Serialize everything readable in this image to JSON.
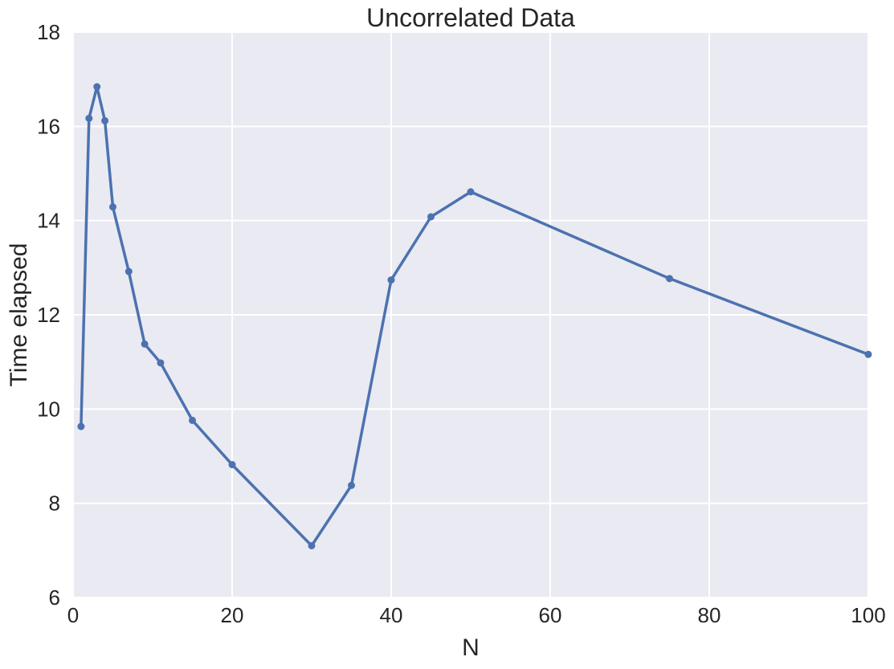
{
  "chart_data": {
    "type": "line",
    "title": "Uncorrelated Data",
    "xlabel": "N",
    "ylabel": "Time elapsed",
    "xlim": [
      0,
      100
    ],
    "ylim": [
      6,
      18
    ],
    "xticks": [
      0,
      20,
      40,
      60,
      80,
      100
    ],
    "yticks": [
      6,
      8,
      10,
      12,
      14,
      16,
      18
    ],
    "grid": true,
    "legend": "none",
    "colors": {
      "background": "#eaeaf2",
      "grid": "#ffffff",
      "series": "#4c72b0"
    },
    "series": [
      {
        "x": [
          1,
          2,
          3,
          4,
          5,
          7,
          9,
          11,
          15,
          20,
          30,
          35,
          40,
          45,
          50,
          75,
          100
        ],
        "y": [
          9.63,
          16.17,
          16.84,
          16.12,
          14.29,
          12.92,
          11.38,
          10.98,
          9.76,
          8.82,
          7.1,
          8.38,
          12.74,
          14.08,
          14.61,
          12.77,
          11.16
        ]
      }
    ]
  }
}
